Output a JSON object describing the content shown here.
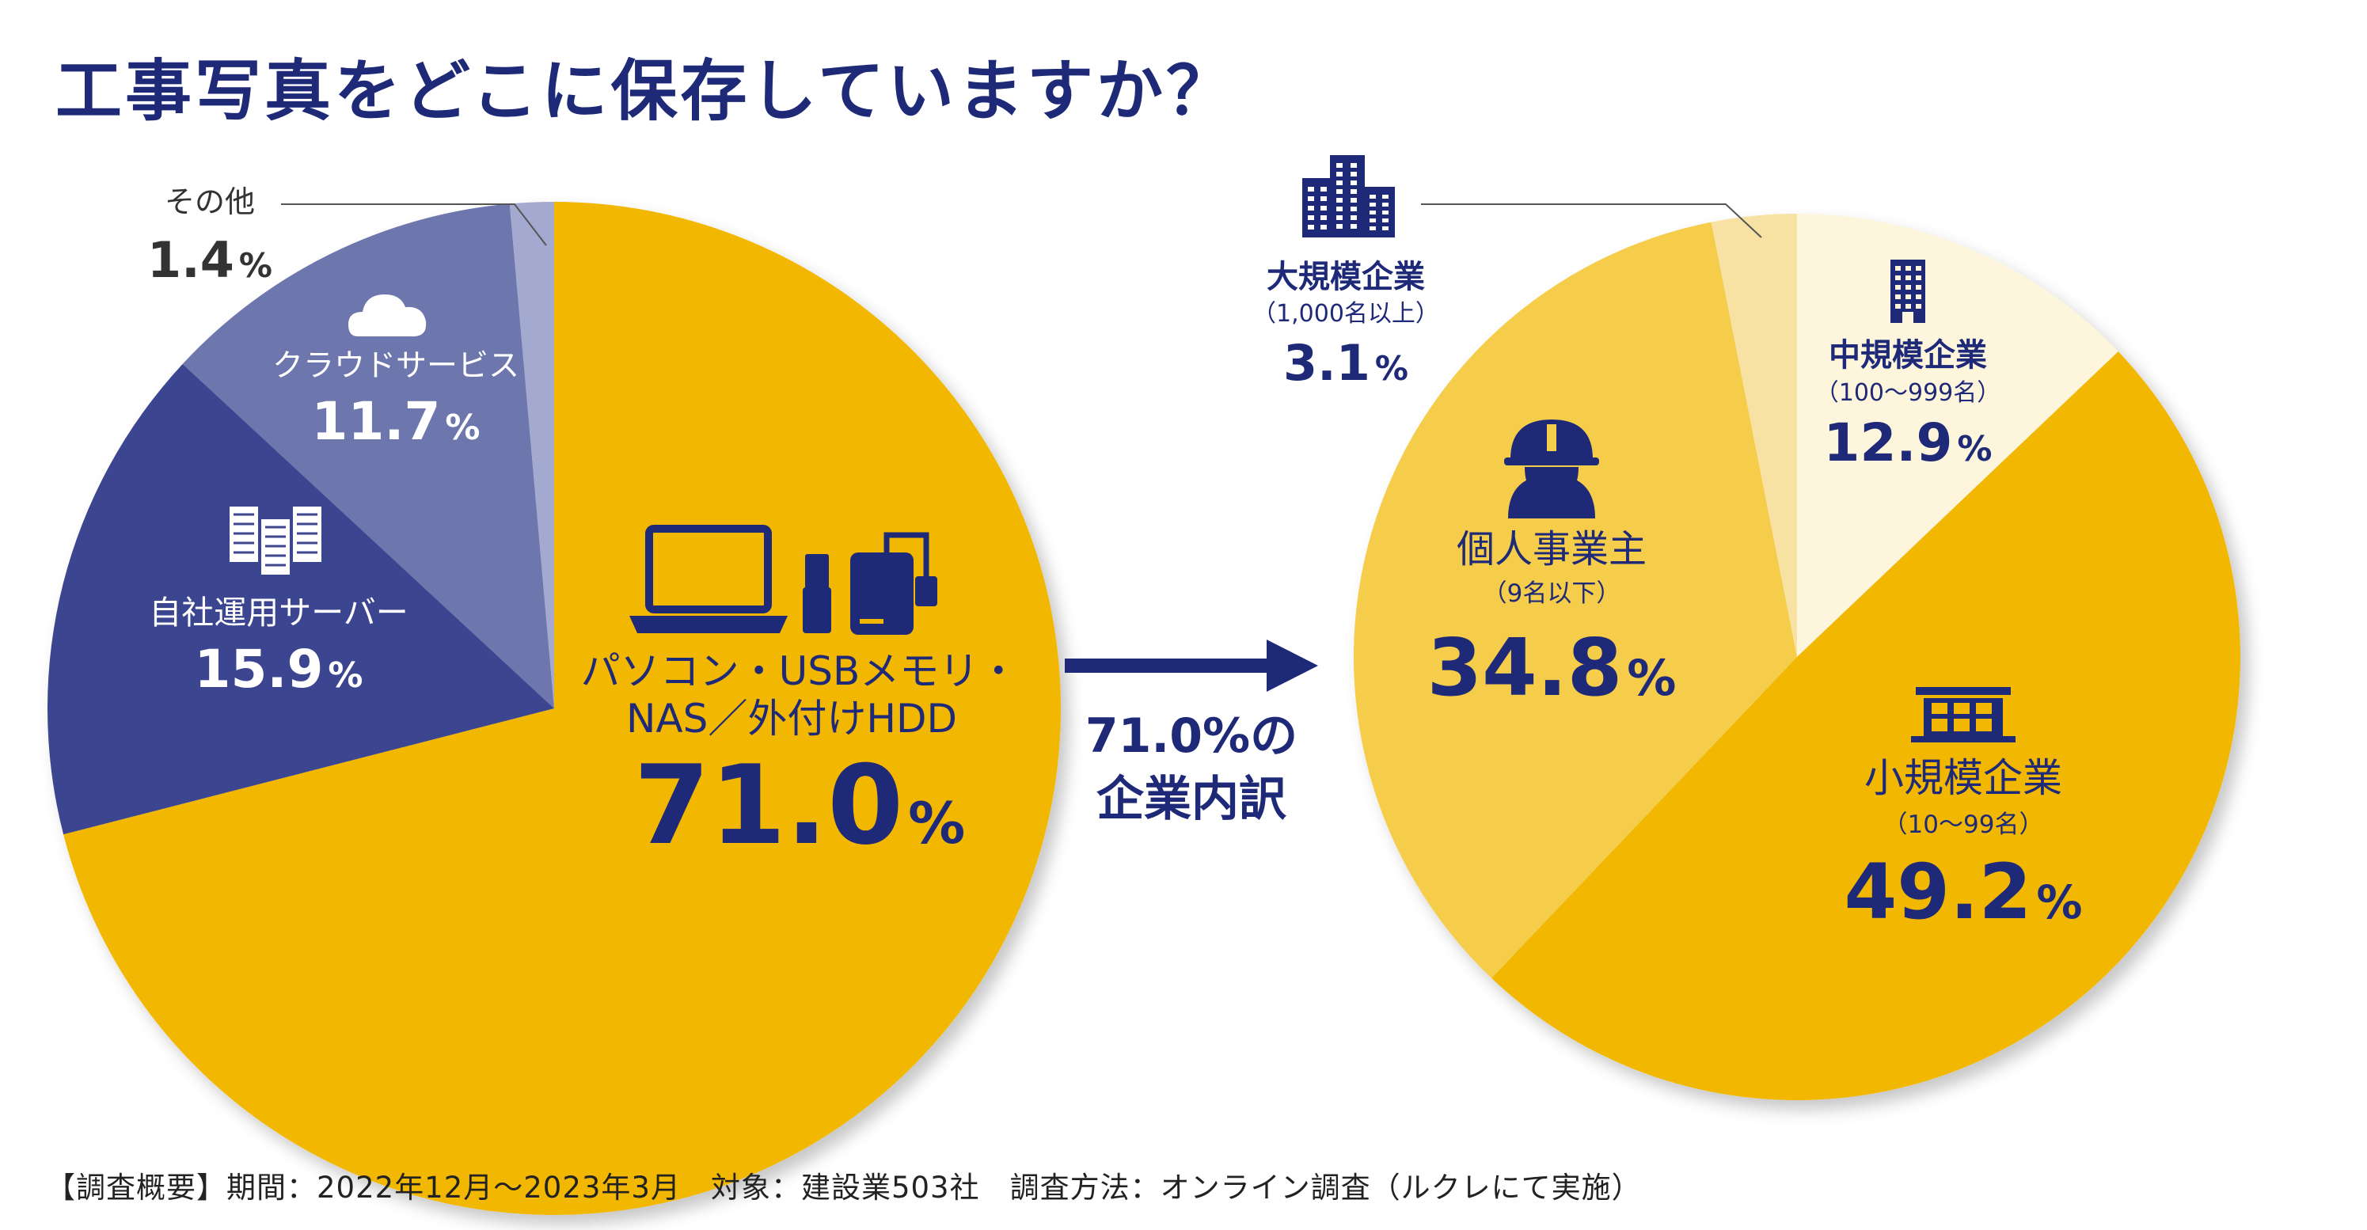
{
  "title": "工事写真をどこに保存していますか？",
  "footnote": "【調査概要】期間：2022年12月～2023年3月　対象：建設業503社　調査方法：オンライン調査（ルクレにて実施）",
  "colors": {
    "title": "#1e2a78",
    "navy": "#1e2a78",
    "gold": "#f2b705"
  },
  "arrow_caption": [
    "71.0%の",
    "企業内訳"
  ],
  "chart_data": [
    {
      "type": "pie",
      "title": "",
      "slices": [
        {
          "label": "パソコン・USBメモリ・NAS／外付けHDD",
          "label_lines": [
            "パソコン・USBメモリ・",
            "NAS／外付けHDD"
          ],
          "value": 71.0,
          "value_text": "71.0",
          "unit": "%",
          "color": "#f2b705",
          "icon": "laptop-usb-hdd-icon"
        },
        {
          "label": "自社運用サーバー",
          "label_lines": [
            "自社運用サーバー"
          ],
          "value": 15.9,
          "value_text": "15.9",
          "unit": "%",
          "color": "#3b4590",
          "icon": "server-icon"
        },
        {
          "label": "クラウドサービス",
          "label_lines": [
            "クラウドサービス"
          ],
          "value": 11.7,
          "value_text": "11.7",
          "unit": "%",
          "color": "#6d76ad",
          "icon": "cloud-icon"
        },
        {
          "label": "その他",
          "label_lines": [
            "その他"
          ],
          "value": 1.4,
          "value_text": "1.4",
          "unit": "%",
          "color": "#a4a9cf",
          "icon": ""
        }
      ]
    },
    {
      "type": "pie",
      "title": "",
      "slices": [
        {
          "label": "中規模企業",
          "label_lines": [
            "中規模企業",
            "（100～999名）"
          ],
          "value": 12.9,
          "value_text": "12.9",
          "unit": "%",
          "color": "#fdf5dc",
          "icon": "mid-building-icon"
        },
        {
          "label": "小規模企業",
          "label_lines": [
            "小規模企業",
            "（10～99名）"
          ],
          "value": 49.2,
          "value_text": "49.2",
          "unit": "%",
          "color": "#f2b705",
          "icon": "small-building-icon"
        },
        {
          "label": "個人事業主",
          "label_lines": [
            "個人事業主",
            "（9名以下）"
          ],
          "value": 34.8,
          "value_text": "34.8",
          "unit": "%",
          "color": "#f5cd4c",
          "icon": "worker-icon"
        },
        {
          "label": "大規模企業",
          "label_lines": [
            "大規模企業",
            "（1,000名以上）"
          ],
          "value": 3.1,
          "value_text": "3.1",
          "unit": "%",
          "color": "#f8e2a3",
          "icon": "large-building-icon"
        }
      ]
    }
  ]
}
